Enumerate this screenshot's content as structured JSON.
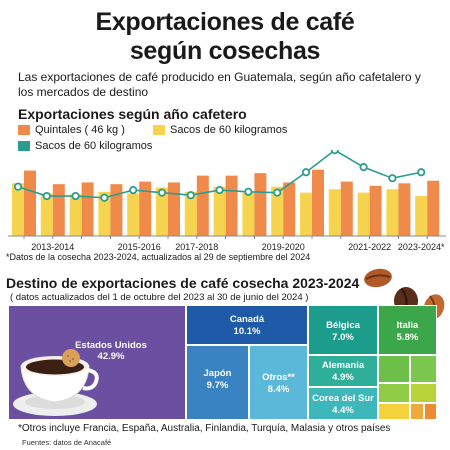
{
  "title_line1": "Exportaciones de café",
  "title_line2": "según cosechas",
  "subtitle": "Las exportaciones de café producido en Guatemala, según año cafetalero y los mercados de destino",
  "section1_title": "Exportaciones según año cafetero",
  "legend": {
    "item1": "Quintales ( 46 kg )",
    "item2": "Sacos de 60 kilogramos",
    "item3": "Sacos de 60 kilogramos"
  },
  "colors": {
    "orange": "#F08A4B",
    "yellow": "#F6D44F",
    "teal": "#2A9D8F"
  },
  "note1": "*Datos de la cosecha 2023-2024, actualizados al 29 de septiembre del 2024",
  "section2_title": "Destino de exportaciones de café cosecha 2023-2024",
  "section2_subtitle": "( datos actualizados del 1 de octubre del 2023 al 30 de junio del 2024 )",
  "footnote": "*Otros incluye Francia, España, Australia, Finlandia, Turquía, Malasia y otros países",
  "source": "Fuentes: datos de Anacafé",
  "chart_data": [
    {
      "type": "bar",
      "x_tick_labels": [
        "2013-2014",
        "2015-2016",
        "2017-2018",
        "2019-2020",
        "2021-2022",
        "2023-2024*"
      ],
      "series": [
        {
          "name": "Sacos de 60 kilogramos",
          "values": [
            62,
            50,
            49,
            52,
            50,
            57,
            52,
            58,
            51,
            58,
            51,
            55,
            51,
            55,
            47
          ]
        },
        {
          "name": "Quintales ( 46 kg )",
          "values": [
            77,
            61,
            63,
            61,
            64,
            63,
            71,
            71,
            74,
            63,
            78,
            64,
            59,
            62,
            65
          ]
        },
        {
          "name": "Sacos de 60 kilogramos",
          "values": [
            58,
            47,
            47,
            45,
            54,
            51,
            48,
            54,
            52,
            51,
            75,
            101,
            81,
            68,
            75
          ]
        }
      ],
      "grid": false
    },
    {
      "type": "treemap",
      "items": [
        {
          "label": "Estados Unidos",
          "value": "42.9%",
          "color": "#6B4FA0"
        },
        {
          "label": "Canadá",
          "value": "10.1%",
          "color": "#1E5AA8"
        },
        {
          "label": "Japón",
          "value": "9.7%",
          "color": "#3A83C2"
        },
        {
          "label": "Otros**",
          "value": "8.4%",
          "color": "#5BB8D8"
        },
        {
          "label": "Bélgica",
          "value": "7.0%",
          "color": "#1C9C8A"
        },
        {
          "label": "Italia",
          "value": "5.8%",
          "color": "#3BA64A"
        },
        {
          "label": "Alemania",
          "value": "4.9%",
          "color": "#2FAE9A"
        },
        {
          "label": "Corea del Sur",
          "value": "4.4%",
          "color": "#3DB7B9"
        }
      ]
    }
  ]
}
